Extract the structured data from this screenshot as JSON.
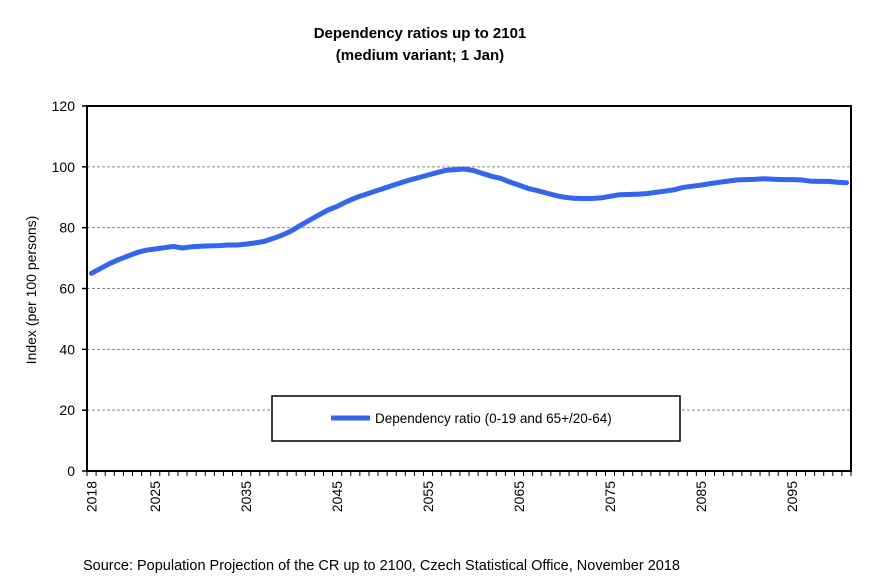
{
  "chart_data": {
    "type": "line",
    "title": "Dependency ratios up to 2101",
    "subtitle": "(medium  variant; 1 Jan)",
    "xlabel": "",
    "ylabel": "Index (per 100 persons)",
    "ylim": [
      0,
      120
    ],
    "yticks": [
      0,
      20,
      40,
      60,
      80,
      100,
      120
    ],
    "xtick_labels": [
      "2018",
      "2025",
      "2035",
      "2045",
      "2055",
      "2065",
      "2075",
      "2085",
      "2095"
    ],
    "grid": "horizontal dashed",
    "legend": "bottom-center inside plot",
    "x_start": 2018,
    "x_end": 2101,
    "series": [
      {
        "name": "Dependency ratio (0-19 and 65+/20-64)",
        "color": "#3366ee",
        "values": [
          65.0,
          66.6,
          68.2,
          69.5,
          70.7,
          71.8,
          72.6,
          73.0,
          73.4,
          73.8,
          73.3,
          73.7,
          73.9,
          74.0,
          74.1,
          74.3,
          74.3,
          74.6,
          75.0,
          75.5,
          76.5,
          77.6,
          79.0,
          80.8,
          82.5,
          84.2,
          85.8,
          87.0,
          88.5,
          89.8,
          90.8,
          91.8,
          92.8,
          93.8,
          94.8,
          95.7,
          96.5,
          97.3,
          98.1,
          98.9,
          99.1,
          99.3,
          98.8,
          97.8,
          96.9,
          96.2,
          95.0,
          94.0,
          92.9,
          92.2,
          91.4,
          90.6,
          90.0,
          89.7,
          89.6,
          89.6,
          89.8,
          90.3,
          90.8,
          90.9,
          91.0,
          91.2,
          91.6,
          92.0,
          92.4,
          93.2,
          93.6,
          94.0,
          94.5,
          94.9,
          95.3,
          95.7,
          95.8,
          95.9,
          96.1,
          95.9,
          95.8,
          95.8,
          95.7,
          95.3,
          95.2,
          95.2,
          94.9,
          94.8
        ]
      }
    ]
  },
  "source": "Source: Population Projection of the CR up to 2100, Czech Statistical Office, November  2018"
}
